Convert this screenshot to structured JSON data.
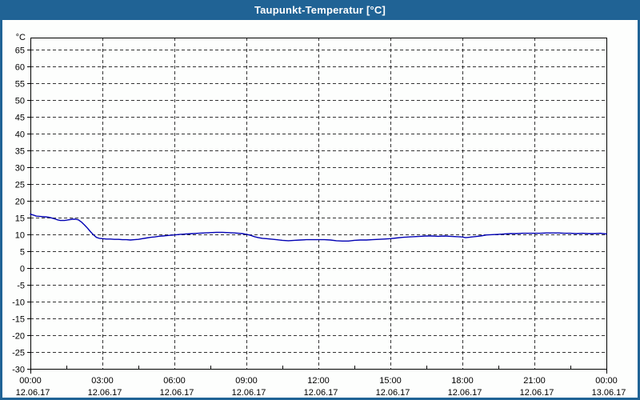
{
  "window": {
    "title": "Taupunkt-Temperatur [°C]"
  },
  "colors": {
    "titlebar": "#206395",
    "frame_border": "#206395",
    "plot_background": "#fdfefd",
    "axis": "#000000",
    "grid": "#333333",
    "label_text": "#000000",
    "title_text": "#ffffff",
    "series": "#0000b4"
  },
  "chart_data": {
    "type": "line",
    "title": "Taupunkt-Temperatur [°C]",
    "y_unit": "°C",
    "ylim": [
      -30,
      68.5
    ],
    "y_ticks": [
      65,
      60,
      55,
      50,
      45,
      40,
      35,
      30,
      25,
      20,
      15,
      10,
      5,
      0,
      -5,
      -10,
      -15,
      -20,
      -25,
      -30
    ],
    "x_total_minutes": 1440,
    "x_tick_interval_minutes": 180,
    "x_minor_tick_interval_minutes": 90,
    "x_ticks": [
      {
        "time": "00:00",
        "date": "12.06.17"
      },
      {
        "time": "03:00",
        "date": "12.06.17"
      },
      {
        "time": "06:00",
        "date": "12.06.17"
      },
      {
        "time": "09:00",
        "date": "12.06.17"
      },
      {
        "time": "12:00",
        "date": "12.06.17"
      },
      {
        "time": "15:00",
        "date": "12.06.17"
      },
      {
        "time": "18:00",
        "date": "12.06.17"
      },
      {
        "time": "21:00",
        "date": "12.06.17"
      },
      {
        "time": "00:00",
        "date": "13.06.17"
      }
    ],
    "grid": "dashed",
    "legend": "none",
    "series": [
      {
        "name": "Taupunkt-Temperatur",
        "color": "#0000b4",
        "points": [
          [
            0,
            16.0
          ],
          [
            8,
            15.7
          ],
          [
            15,
            15.4
          ],
          [
            25,
            15.3
          ],
          [
            35,
            15.2
          ],
          [
            45,
            15.1
          ],
          [
            52,
            14.9
          ],
          [
            60,
            14.6
          ],
          [
            68,
            14.3
          ],
          [
            75,
            14.1
          ],
          [
            85,
            14.1
          ],
          [
            95,
            14.3
          ],
          [
            105,
            14.5
          ],
          [
            113,
            14.5
          ],
          [
            120,
            14.3
          ],
          [
            128,
            13.6
          ],
          [
            135,
            12.8
          ],
          [
            143,
            11.8
          ],
          [
            150,
            10.8
          ],
          [
            158,
            9.8
          ],
          [
            165,
            9.1
          ],
          [
            172,
            8.8
          ],
          [
            180,
            8.7
          ],
          [
            190,
            8.6
          ],
          [
            200,
            8.6
          ],
          [
            210,
            8.5
          ],
          [
            220,
            8.5
          ],
          [
            230,
            8.4
          ],
          [
            240,
            8.4
          ],
          [
            250,
            8.3
          ],
          [
            260,
            8.4
          ],
          [
            270,
            8.5
          ],
          [
            280,
            8.7
          ],
          [
            290,
            8.9
          ],
          [
            300,
            9.1
          ],
          [
            310,
            9.2
          ],
          [
            320,
            9.4
          ],
          [
            330,
            9.5
          ],
          [
            340,
            9.6
          ],
          [
            350,
            9.7
          ],
          [
            360,
            9.8
          ],
          [
            375,
            10.0
          ],
          [
            390,
            10.1
          ],
          [
            405,
            10.2
          ],
          [
            420,
            10.3
          ],
          [
            435,
            10.4
          ],
          [
            450,
            10.5
          ],
          [
            465,
            10.6
          ],
          [
            480,
            10.6
          ],
          [
            495,
            10.5
          ],
          [
            510,
            10.4
          ],
          [
            520,
            10.3
          ],
          [
            530,
            10.2
          ],
          [
            540,
            10.0
          ],
          [
            550,
            9.7
          ],
          [
            560,
            9.3
          ],
          [
            570,
            9.0
          ],
          [
            580,
            8.8
          ],
          [
            590,
            8.7
          ],
          [
            600,
            8.6
          ],
          [
            615,
            8.4
          ],
          [
            630,
            8.2
          ],
          [
            645,
            8.1
          ],
          [
            660,
            8.2
          ],
          [
            675,
            8.3
          ],
          [
            690,
            8.4
          ],
          [
            705,
            8.4
          ],
          [
            720,
            8.4
          ],
          [
            735,
            8.4
          ],
          [
            750,
            8.3
          ],
          [
            765,
            8.1
          ],
          [
            780,
            8.0
          ],
          [
            795,
            8.0
          ],
          [
            810,
            8.2
          ],
          [
            825,
            8.3
          ],
          [
            840,
            8.3
          ],
          [
            855,
            8.4
          ],
          [
            870,
            8.5
          ],
          [
            885,
            8.6
          ],
          [
            900,
            8.7
          ],
          [
            915,
            8.9
          ],
          [
            930,
            9.1
          ],
          [
            945,
            9.2
          ],
          [
            960,
            9.3
          ],
          [
            975,
            9.4
          ],
          [
            990,
            9.5
          ],
          [
            1005,
            9.5
          ],
          [
            1020,
            9.4
          ],
          [
            1035,
            9.5
          ],
          [
            1050,
            9.4
          ],
          [
            1065,
            9.3
          ],
          [
            1080,
            9.2
          ],
          [
            1088,
            9.0
          ],
          [
            1095,
            9.1
          ],
          [
            1110,
            9.3
          ],
          [
            1125,
            9.5
          ],
          [
            1140,
            9.8
          ],
          [
            1155,
            9.9
          ],
          [
            1170,
            10.0
          ],
          [
            1185,
            10.1
          ],
          [
            1200,
            10.2
          ],
          [
            1215,
            10.2
          ],
          [
            1230,
            10.3
          ],
          [
            1245,
            10.3
          ],
          [
            1260,
            10.3
          ],
          [
            1275,
            10.3
          ],
          [
            1290,
            10.4
          ],
          [
            1305,
            10.4
          ],
          [
            1320,
            10.4
          ],
          [
            1335,
            10.3
          ],
          [
            1350,
            10.3
          ],
          [
            1365,
            10.2
          ],
          [
            1380,
            10.3
          ],
          [
            1395,
            10.2
          ],
          [
            1410,
            10.2
          ],
          [
            1425,
            10.3
          ],
          [
            1440,
            10.1
          ]
        ]
      }
    ]
  }
}
